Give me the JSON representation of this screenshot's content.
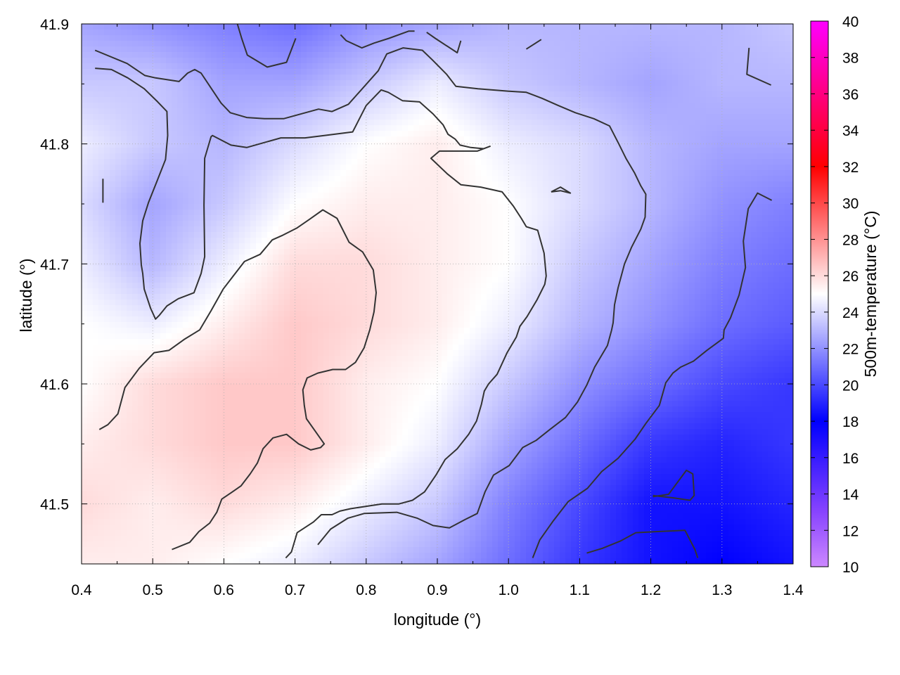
{
  "chart_data": {
    "type": "heatmap",
    "title": "",
    "xlabel": "longitude (°)",
    "ylabel": "latitude (°)",
    "colorbar_label": "500m-temperature (°C)",
    "xlim": [
      0.4,
      1.4
    ],
    "ylim": [
      41.45,
      41.9
    ],
    "x_ticks": [
      "0.4",
      "0.5",
      "0.6",
      "0.7",
      "0.8",
      "0.9",
      "1.0",
      "1.1",
      "1.2",
      "1.3",
      "1.4"
    ],
    "y_ticks": [
      "41.5",
      "41.6",
      "41.7",
      "41.8",
      "41.9"
    ],
    "colorbar_range": [
      10,
      40
    ],
    "colorbar_ticks": [
      "10",
      "12",
      "14",
      "16",
      "18",
      "20",
      "22",
      "24",
      "26",
      "28",
      "30",
      "32",
      "34",
      "36",
      "38",
      "40"
    ],
    "colormap": [
      {
        "t": 10,
        "color": "#cc88ff"
      },
      {
        "t": 13,
        "color": "#8844ff"
      },
      {
        "t": 18,
        "color": "#0000ff"
      },
      {
        "t": 25,
        "color": "#ffffff"
      },
      {
        "t": 32,
        "color": "#ff0000"
      },
      {
        "t": 40,
        "color": "#ff00ff"
      }
    ],
    "grid": true,
    "contour_color": "#333333",
    "temperature_field": {
      "lon": [
        0.4,
        0.5,
        0.6,
        0.7,
        0.8,
        0.9,
        1.0,
        1.1,
        1.2,
        1.3,
        1.4
      ],
      "lat": [
        41.9,
        41.85,
        41.8,
        41.75,
        41.7,
        41.65,
        41.6,
        41.55,
        41.5,
        41.45
      ],
      "values": [
        [
          22.5,
          22.0,
          21.5,
          21.0,
          22.0,
          22.5,
          23.0,
          23.0,
          23.0,
          23.0,
          23.5
        ],
        [
          23.5,
          23.5,
          22.5,
          22.5,
          23.5,
          24.5,
          23.5,
          23.0,
          22.5,
          23.0,
          23.0
        ],
        [
          24.5,
          23.5,
          23.0,
          24.0,
          25.0,
          25.5,
          24.5,
          24.0,
          23.0,
          22.5,
          22.5
        ],
        [
          24.0,
          22.5,
          23.5,
          25.0,
          25.5,
          25.5,
          25.0,
          24.0,
          23.0,
          22.0,
          21.5
        ],
        [
          24.5,
          23.0,
          24.5,
          26.0,
          26.0,
          25.5,
          25.0,
          23.5,
          22.5,
          21.5,
          21.0
        ],
        [
          25.0,
          24.5,
          25.5,
          26.5,
          26.0,
          25.5,
          24.5,
          23.0,
          22.0,
          21.0,
          20.5
        ],
        [
          25.0,
          26.0,
          26.5,
          26.5,
          25.5,
          25.0,
          23.5,
          22.0,
          21.0,
          20.0,
          19.5
        ],
        [
          25.5,
          26.0,
          26.5,
          26.5,
          25.5,
          24.5,
          22.5,
          21.0,
          19.5,
          19.0,
          19.5
        ],
        [
          26.0,
          25.5,
          26.0,
          25.5,
          24.5,
          23.5,
          21.5,
          20.0,
          18.5,
          18.5,
          19.0
        ],
        [
          25.5,
          25.5,
          25.0,
          24.5,
          23.5,
          22.5,
          21.0,
          19.5,
          18.5,
          18.0,
          18.5
        ]
      ]
    },
    "contours": [
      [
        [
          0.419,
          41.878
        ],
        [
          0.464,
          41.867
        ],
        [
          0.489,
          41.857
        ],
        [
          0.504,
          41.855
        ],
        [
          0.537,
          41.852
        ],
        [
          0.549,
          41.859
        ],
        [
          0.559,
          41.862
        ],
        [
          0.568,
          41.859
        ],
        [
          0.596,
          41.834
        ],
        [
          0.609,
          41.826
        ],
        [
          0.632,
          41.822
        ],
        [
          0.657,
          41.821
        ],
        [
          0.684,
          41.821
        ],
        [
          0.733,
          41.829
        ],
        [
          0.752,
          41.827
        ],
        [
          0.775,
          41.833
        ],
        [
          0.793,
          41.845
        ],
        [
          0.817,
          41.861
        ],
        [
          0.829,
          41.875
        ],
        [
          0.852,
          41.88
        ],
        [
          0.879,
          41.878
        ],
        [
          0.893,
          41.87
        ],
        [
          0.913,
          41.858
        ],
        [
          0.926,
          41.848
        ],
        [
          0.957,
          41.846
        ],
        [
          0.999,
          41.844
        ],
        [
          1.025,
          41.843
        ],
        [
          1.047,
          41.838
        ],
        [
          1.07,
          41.832
        ],
        [
          1.094,
          41.826
        ],
        [
          1.12,
          41.821
        ],
        [
          1.142,
          41.815
        ],
        [
          1.155,
          41.8
        ],
        [
          1.165,
          41.788
        ],
        [
          1.177,
          41.776
        ],
        [
          1.186,
          41.765
        ],
        [
          1.193,
          41.758
        ],
        [
          1.192,
          41.739
        ],
        [
          1.186,
          41.729
        ],
        [
          1.173,
          41.714
        ],
        [
          1.163,
          41.7
        ],
        [
          1.154,
          41.68
        ],
        [
          1.149,
          41.666
        ],
        [
          1.147,
          41.651
        ],
        [
          1.145,
          41.645
        ],
        [
          1.139,
          41.632
        ],
        [
          1.121,
          41.614
        ],
        [
          1.11,
          41.599
        ],
        [
          1.097,
          41.585
        ],
        [
          1.08,
          41.572
        ],
        [
          1.058,
          41.562
        ],
        [
          1.039,
          41.553
        ],
        [
          1.02,
          41.547
        ],
        [
          1.001,
          41.532
        ],
        [
          0.979,
          41.524
        ],
        [
          0.967,
          41.51
        ],
        [
          0.956,
          41.492
        ],
        [
          0.939,
          41.487
        ],
        [
          0.917,
          41.48
        ],
        [
          0.894,
          41.482
        ],
        [
          0.872,
          41.488
        ],
        [
          0.843,
          41.493
        ],
        [
          0.797,
          41.492
        ],
        [
          0.774,
          41.488
        ],
        [
          0.75,
          41.479
        ],
        [
          0.732,
          41.466
        ]
      ],
      [
        [
          0.419,
          41.863
        ],
        [
          0.442,
          41.862
        ],
        [
          0.465,
          41.855
        ],
        [
          0.488,
          41.846
        ],
        [
          0.507,
          41.835
        ],
        [
          0.52,
          41.827
        ],
        [
          0.521,
          41.807
        ],
        [
          0.518,
          41.787
        ],
        [
          0.506,
          41.769
        ],
        [
          0.494,
          41.751
        ],
        [
          0.486,
          41.736
        ],
        [
          0.482,
          41.717
        ],
        [
          0.484,
          41.699
        ],
        [
          0.486,
          41.692
        ],
        [
          0.488,
          41.679
        ],
        [
          0.497,
          41.663
        ],
        [
          0.504,
          41.654
        ],
        [
          0.509,
          41.657
        ],
        [
          0.52,
          41.665
        ],
        [
          0.536,
          41.671
        ],
        [
          0.558,
          41.676
        ],
        [
          0.568,
          41.692
        ],
        [
          0.573,
          41.706
        ],
        [
          0.572,
          41.749
        ],
        [
          0.573,
          41.788
        ],
        [
          0.582,
          41.806
        ],
        [
          0.584,
          41.807
        ],
        [
          0.61,
          41.799
        ],
        [
          0.632,
          41.797
        ],
        [
          0.68,
          41.805
        ],
        [
          0.714,
          41.805
        ],
        [
          0.741,
          41.807
        ],
        [
          0.781,
          41.81
        ],
        [
          0.8,
          41.832
        ],
        [
          0.821,
          41.845
        ],
        [
          0.831,
          41.843
        ],
        [
          0.851,
          41.836
        ],
        [
          0.875,
          41.835
        ],
        [
          0.894,
          41.825
        ],
        [
          0.908,
          41.816
        ],
        [
          0.915,
          41.808
        ],
        [
          0.925,
          41.804
        ],
        [
          0.932,
          41.799
        ],
        [
          0.947,
          41.797
        ],
        [
          0.965,
          41.796
        ],
        [
          0.974,
          41.798
        ],
        [
          0.956,
          41.794
        ],
        [
          0.939,
          41.794
        ],
        [
          0.903,
          41.794
        ],
        [
          0.891,
          41.788
        ],
        [
          0.914,
          41.775
        ],
        [
          0.933,
          41.766
        ],
        [
          0.961,
          41.764
        ],
        [
          0.991,
          41.76
        ],
        [
          1.007,
          41.748
        ],
        [
          1.018,
          41.738
        ],
        [
          1.025,
          41.731
        ],
        [
          1.041,
          41.728
        ],
        [
          1.05,
          41.709
        ],
        [
          1.053,
          41.69
        ],
        [
          1.051,
          41.683
        ],
        [
          1.04,
          41.67
        ],
        [
          1.026,
          41.656
        ],
        [
          1.016,
          41.648
        ],
        [
          1.011,
          41.639
        ],
        [
          0.998,
          41.626
        ],
        [
          0.984,
          41.608
        ],
        [
          0.972,
          41.6
        ],
        [
          0.966,
          41.594
        ],
        [
          0.962,
          41.583
        ],
        [
          0.955,
          41.569
        ],
        [
          0.944,
          41.558
        ],
        [
          0.928,
          41.546
        ],
        [
          0.911,
          41.537
        ],
        [
          0.898,
          41.524
        ],
        [
          0.882,
          41.51
        ],
        [
          0.865,
          41.503
        ],
        [
          0.846,
          41.5
        ],
        [
          0.822,
          41.5
        ],
        [
          0.8,
          41.498
        ],
        [
          0.778,
          41.496
        ],
        [
          0.763,
          41.494
        ],
        [
          0.752,
          41.491
        ],
        [
          0.737,
          41.491
        ],
        [
          0.726,
          41.485
        ],
        [
          0.703,
          41.476
        ],
        [
          0.695,
          41.46
        ],
        [
          0.687,
          41.455
        ]
      ],
      [
        [
          0.425,
          41.562
        ],
        [
          0.437,
          41.566
        ],
        [
          0.451,
          41.575
        ],
        [
          0.461,
          41.597
        ],
        [
          0.481,
          41.613
        ],
        [
          0.502,
          41.626
        ],
        [
          0.523,
          41.628
        ],
        [
          0.544,
          41.637
        ],
        [
          0.566,
          41.645
        ],
        [
          0.582,
          41.661
        ],
        [
          0.599,
          41.679
        ],
        [
          0.612,
          41.689
        ],
        [
          0.629,
          41.702
        ],
        [
          0.651,
          41.708
        ],
        [
          0.668,
          41.72
        ],
        [
          0.683,
          41.724
        ],
        [
          0.703,
          41.73
        ],
        [
          0.72,
          41.737
        ],
        [
          0.739,
          41.745
        ],
        [
          0.759,
          41.738
        ],
        [
          0.776,
          41.718
        ],
        [
          0.795,
          41.71
        ],
        [
          0.81,
          41.695
        ],
        [
          0.814,
          41.676
        ],
        [
          0.811,
          41.66
        ],
        [
          0.805,
          41.645
        ],
        [
          0.797,
          41.63
        ],
        [
          0.785,
          41.618
        ],
        [
          0.771,
          41.612
        ],
        [
          0.753,
          41.612
        ],
        [
          0.732,
          41.609
        ],
        [
          0.717,
          41.605
        ],
        [
          0.711,
          41.595
        ],
        [
          0.713,
          41.582
        ],
        [
          0.716,
          41.571
        ],
        [
          0.728,
          41.561
        ],
        [
          0.741,
          41.55
        ],
        [
          0.736,
          41.547
        ],
        [
          0.722,
          41.545
        ],
        [
          0.705,
          41.55
        ],
        [
          0.688,
          41.558
        ],
        [
          0.669,
          41.555
        ],
        [
          0.655,
          41.546
        ],
        [
          0.647,
          41.534
        ],
        [
          0.637,
          41.525
        ],
        [
          0.624,
          41.515
        ],
        [
          0.612,
          41.51
        ],
        [
          0.597,
          41.504
        ],
        [
          0.59,
          41.493
        ],
        [
          0.58,
          41.484
        ],
        [
          0.565,
          41.477
        ],
        [
          0.552,
          41.468
        ],
        [
          0.527,
          41.462
        ]
      ],
      [
        [
          0.43,
          41.751
        ],
        [
          0.43,
          41.755
        ],
        [
          0.43,
          41.771
        ]
      ],
      [
        [
          0.619,
          41.9
        ],
        [
          0.625,
          41.888
        ],
        [
          0.633,
          41.874
        ],
        [
          0.661,
          41.864
        ],
        [
          0.688,
          41.868
        ],
        [
          0.701,
          41.888
        ]
      ],
      [
        [
          0.764,
          41.891
        ],
        [
          0.772,
          41.886
        ],
        [
          0.794,
          41.88
        ],
        [
          0.811,
          41.884
        ],
        [
          0.832,
          41.888
        ],
        [
          0.86,
          41.894
        ],
        [
          0.868,
          41.894
        ]
      ],
      [
        [
          0.885,
          41.893
        ],
        [
          0.897,
          41.888
        ],
        [
          0.928,
          41.876
        ],
        [
          0.933,
          41.886
        ]
      ],
      [
        [
          1.025,
          41.879
        ],
        [
          1.046,
          41.887
        ]
      ],
      [
        [
          1.338,
          41.88
        ],
        [
          1.335,
          41.858
        ],
        [
          1.369,
          41.849
        ]
      ],
      [
        [
          1.06,
          41.76
        ],
        [
          1.073,
          41.764
        ],
        [
          1.087,
          41.759
        ],
        [
          1.073,
          41.761
        ],
        [
          1.06,
          41.76
        ]
      ],
      [
        [
          1.37,
          41.753
        ],
        [
          1.35,
          41.759
        ],
        [
          1.337,
          41.746
        ],
        [
          1.33,
          41.719
        ],
        [
          1.333,
          41.697
        ],
        [
          1.324,
          41.674
        ],
        [
          1.312,
          41.655
        ],
        [
          1.303,
          41.645
        ],
        [
          1.302,
          41.638
        ],
        [
          1.279,
          41.628
        ],
        [
          1.26,
          41.619
        ],
        [
          1.242,
          41.614
        ],
        [
          1.231,
          41.609
        ],
        [
          1.221,
          41.601
        ],
        [
          1.212,
          41.582
        ],
        [
          1.193,
          41.567
        ],
        [
          1.178,
          41.554
        ],
        [
          1.154,
          41.538
        ],
        [
          1.131,
          41.527
        ],
        [
          1.111,
          41.513
        ],
        [
          1.084,
          41.502
        ],
        [
          1.063,
          41.486
        ],
        [
          1.044,
          41.47
        ],
        [
          1.034,
          41.455
        ]
      ],
      [
        [
          1.203,
          41.506
        ],
        [
          1.225,
          41.508
        ],
        [
          1.25,
          41.528
        ],
        [
          1.259,
          41.525
        ],
        [
          1.261,
          41.507
        ],
        [
          1.255,
          41.503
        ],
        [
          1.232,
          41.505
        ],
        [
          1.203,
          41.507
        ]
      ],
      [
        [
          1.11,
          41.459
        ],
        [
          1.132,
          41.463
        ],
        [
          1.157,
          41.469
        ],
        [
          1.179,
          41.476
        ],
        [
          1.212,
          41.477
        ],
        [
          1.248,
          41.478
        ],
        [
          1.262,
          41.462
        ],
        [
          1.266,
          41.455
        ]
      ]
    ]
  }
}
